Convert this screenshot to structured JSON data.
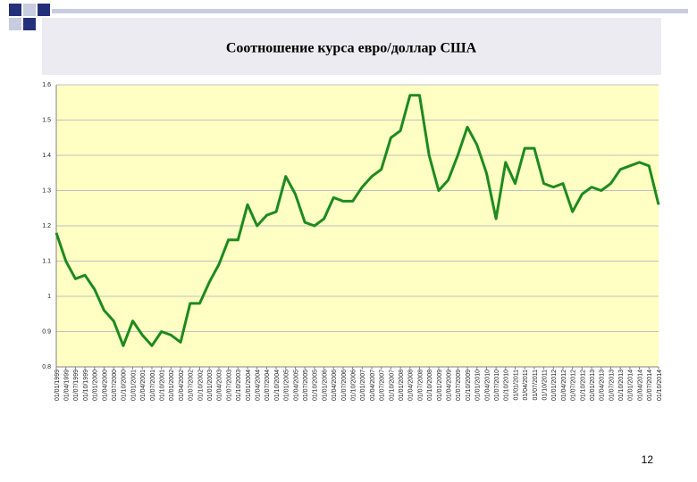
{
  "chart_data": {
    "type": "line",
    "title": "Соотношение курса евро/доллар США",
    "categories": [
      "01/01/1999",
      "01/04/1999",
      "01/07/1999",
      "01/10/1999",
      "01/01/2000",
      "01/04/2000",
      "01/07/2000",
      "01/10/2000",
      "01/01/2001",
      "01/04/2001",
      "01/07/2001",
      "01/10/2001",
      "01/01/2002",
      "01/04/2002",
      "01/07/2002",
      "01/10/2002",
      "01/01/2003",
      "01/04/2003",
      "01/07/2003",
      "01/10/2003",
      "01/01/2004",
      "01/04/2004",
      "01/07/2004",
      "01/10/2004",
      "01/01/2005",
      "01/04/2005",
      "01/07/2005",
      "01/10/2005",
      "01/01/2006",
      "01/04/2006",
      "01/07/2006",
      "01/10/2006",
      "01/01/2007",
      "01/04/2007",
      "01/07/2007",
      "01/10/2007",
      "01/01/2008",
      "01/04/2008",
      "01/07/2008",
      "01/10/2008",
      "01/01/2009",
      "01/04/2009",
      "01/07/2009",
      "01/10/2009",
      "01/01/2010",
      "01/04/2010",
      "01/07/2010",
      "01/10/2010",
      "01/01/2011",
      "01/04/2011",
      "01/07/2011",
      "01/10/2011",
      "01/01/2012",
      "01/04/2012",
      "01/07/2012",
      "01/10/2012",
      "01/01/2013",
      "01/04/2013",
      "01/07/2013",
      "01/10/2013",
      "01/01/2014",
      "01/04/2014",
      "01/07/2014",
      "01/10/2014"
    ],
    "values": [
      1.18,
      1.1,
      1.05,
      1.06,
      1.02,
      0.96,
      0.93,
      0.86,
      0.93,
      0.89,
      0.86,
      0.9,
      0.89,
      0.87,
      0.98,
      0.98,
      1.04,
      1.09,
      1.16,
      1.16,
      1.26,
      1.2,
      1.23,
      1.24,
      1.34,
      1.29,
      1.21,
      1.2,
      1.22,
      1.28,
      1.27,
      1.27,
      1.31,
      1.34,
      1.36,
      1.45,
      1.47,
      1.57,
      1.57,
      1.4,
      1.3,
      1.33,
      1.4,
      1.48,
      1.43,
      1.35,
      1.22,
      1.38,
      1.32,
      1.42,
      1.42,
      1.32,
      1.31,
      1.32,
      1.24,
      1.29,
      1.31,
      1.3,
      1.32,
      1.36,
      1.37,
      1.38,
      1.37,
      1.26
    ],
    "color": "#1e8a1e",
    "ylim": [
      0.8,
      1.6
    ],
    "yticks": [
      0.8,
      0.9,
      1,
      1.1,
      1.2,
      1.3,
      1.4,
      1.5,
      1.6
    ],
    "grid": true
  },
  "page_number": "12"
}
